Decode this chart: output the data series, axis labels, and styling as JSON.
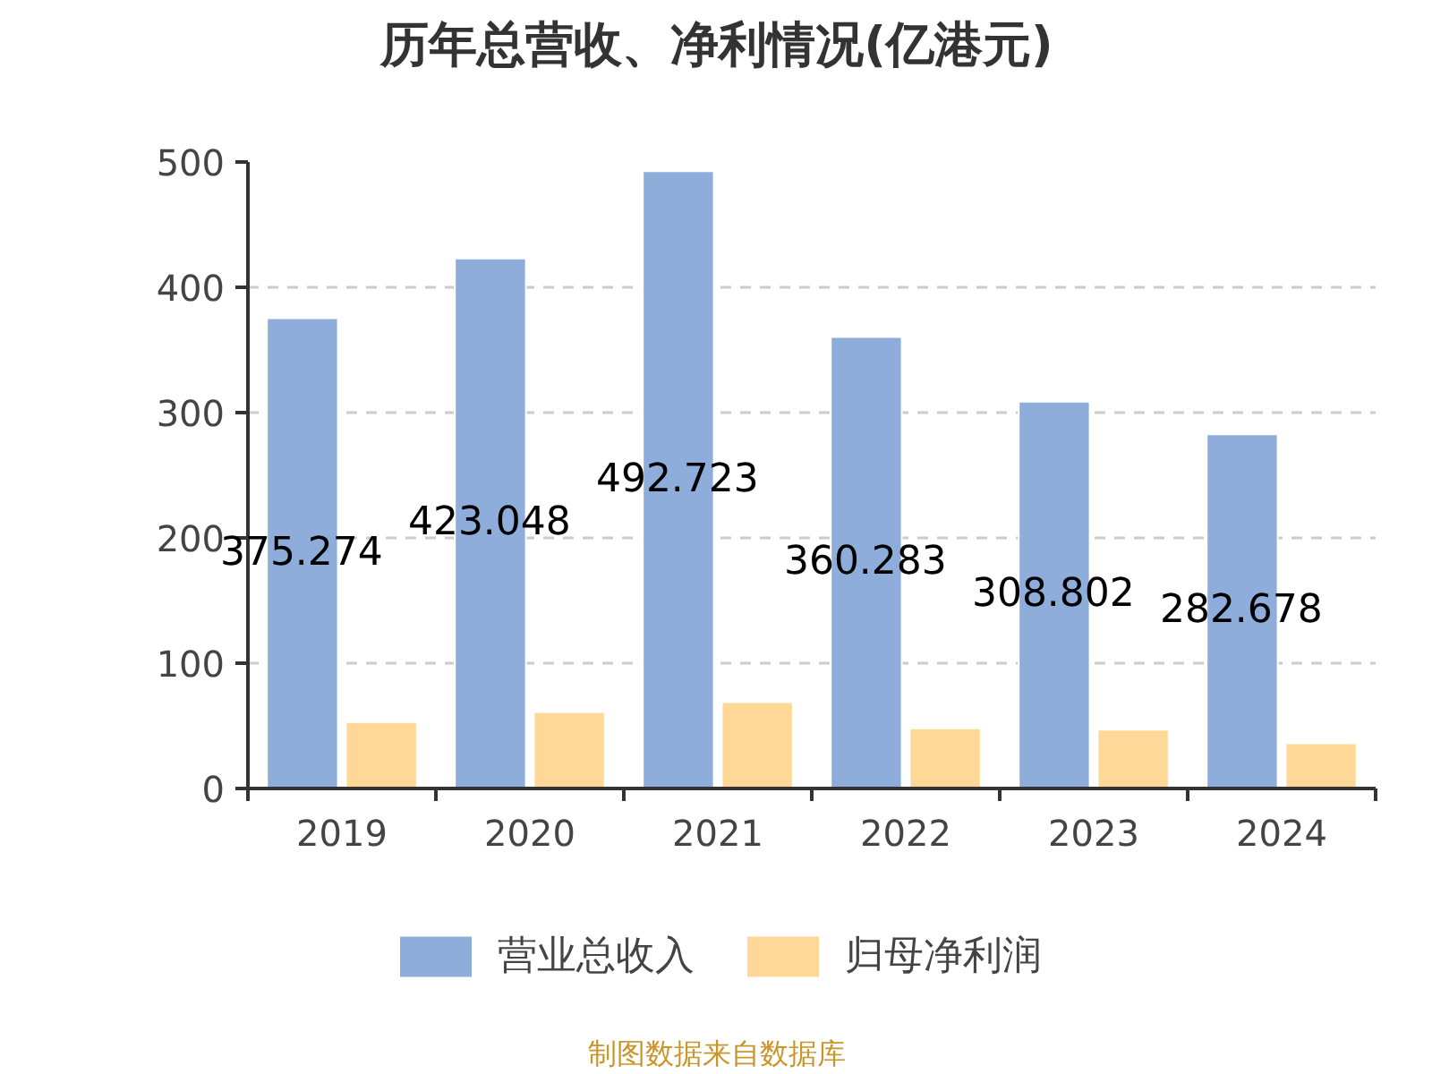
{
  "chart_data": {
    "type": "bar",
    "title": "历年总营收、净利情况(亿港元)",
    "categories": [
      "2019",
      "2020",
      "2021",
      "2022",
      "2023",
      "2024"
    ],
    "series": [
      {
        "name": "营业总收入",
        "color": "#8eaddb",
        "values": [
          375.274,
          423.048,
          492.723,
          360.283,
          308.802,
          282.678
        ],
        "value_labels": [
          "375.274",
          "423.048",
          "492.723",
          "360.283",
          "308.802",
          "282.678"
        ]
      },
      {
        "name": "归母净利润",
        "color": "#ffd897",
        "values": [
          53,
          61,
          69,
          48,
          47,
          36
        ]
      }
    ],
    "ylim": [
      0,
      500
    ],
    "yticks": [
      0,
      100,
      200,
      300,
      400,
      500
    ],
    "grid": "y",
    "legend": "bottom",
    "annotations": [
      "制图数据来自数据库"
    ]
  }
}
